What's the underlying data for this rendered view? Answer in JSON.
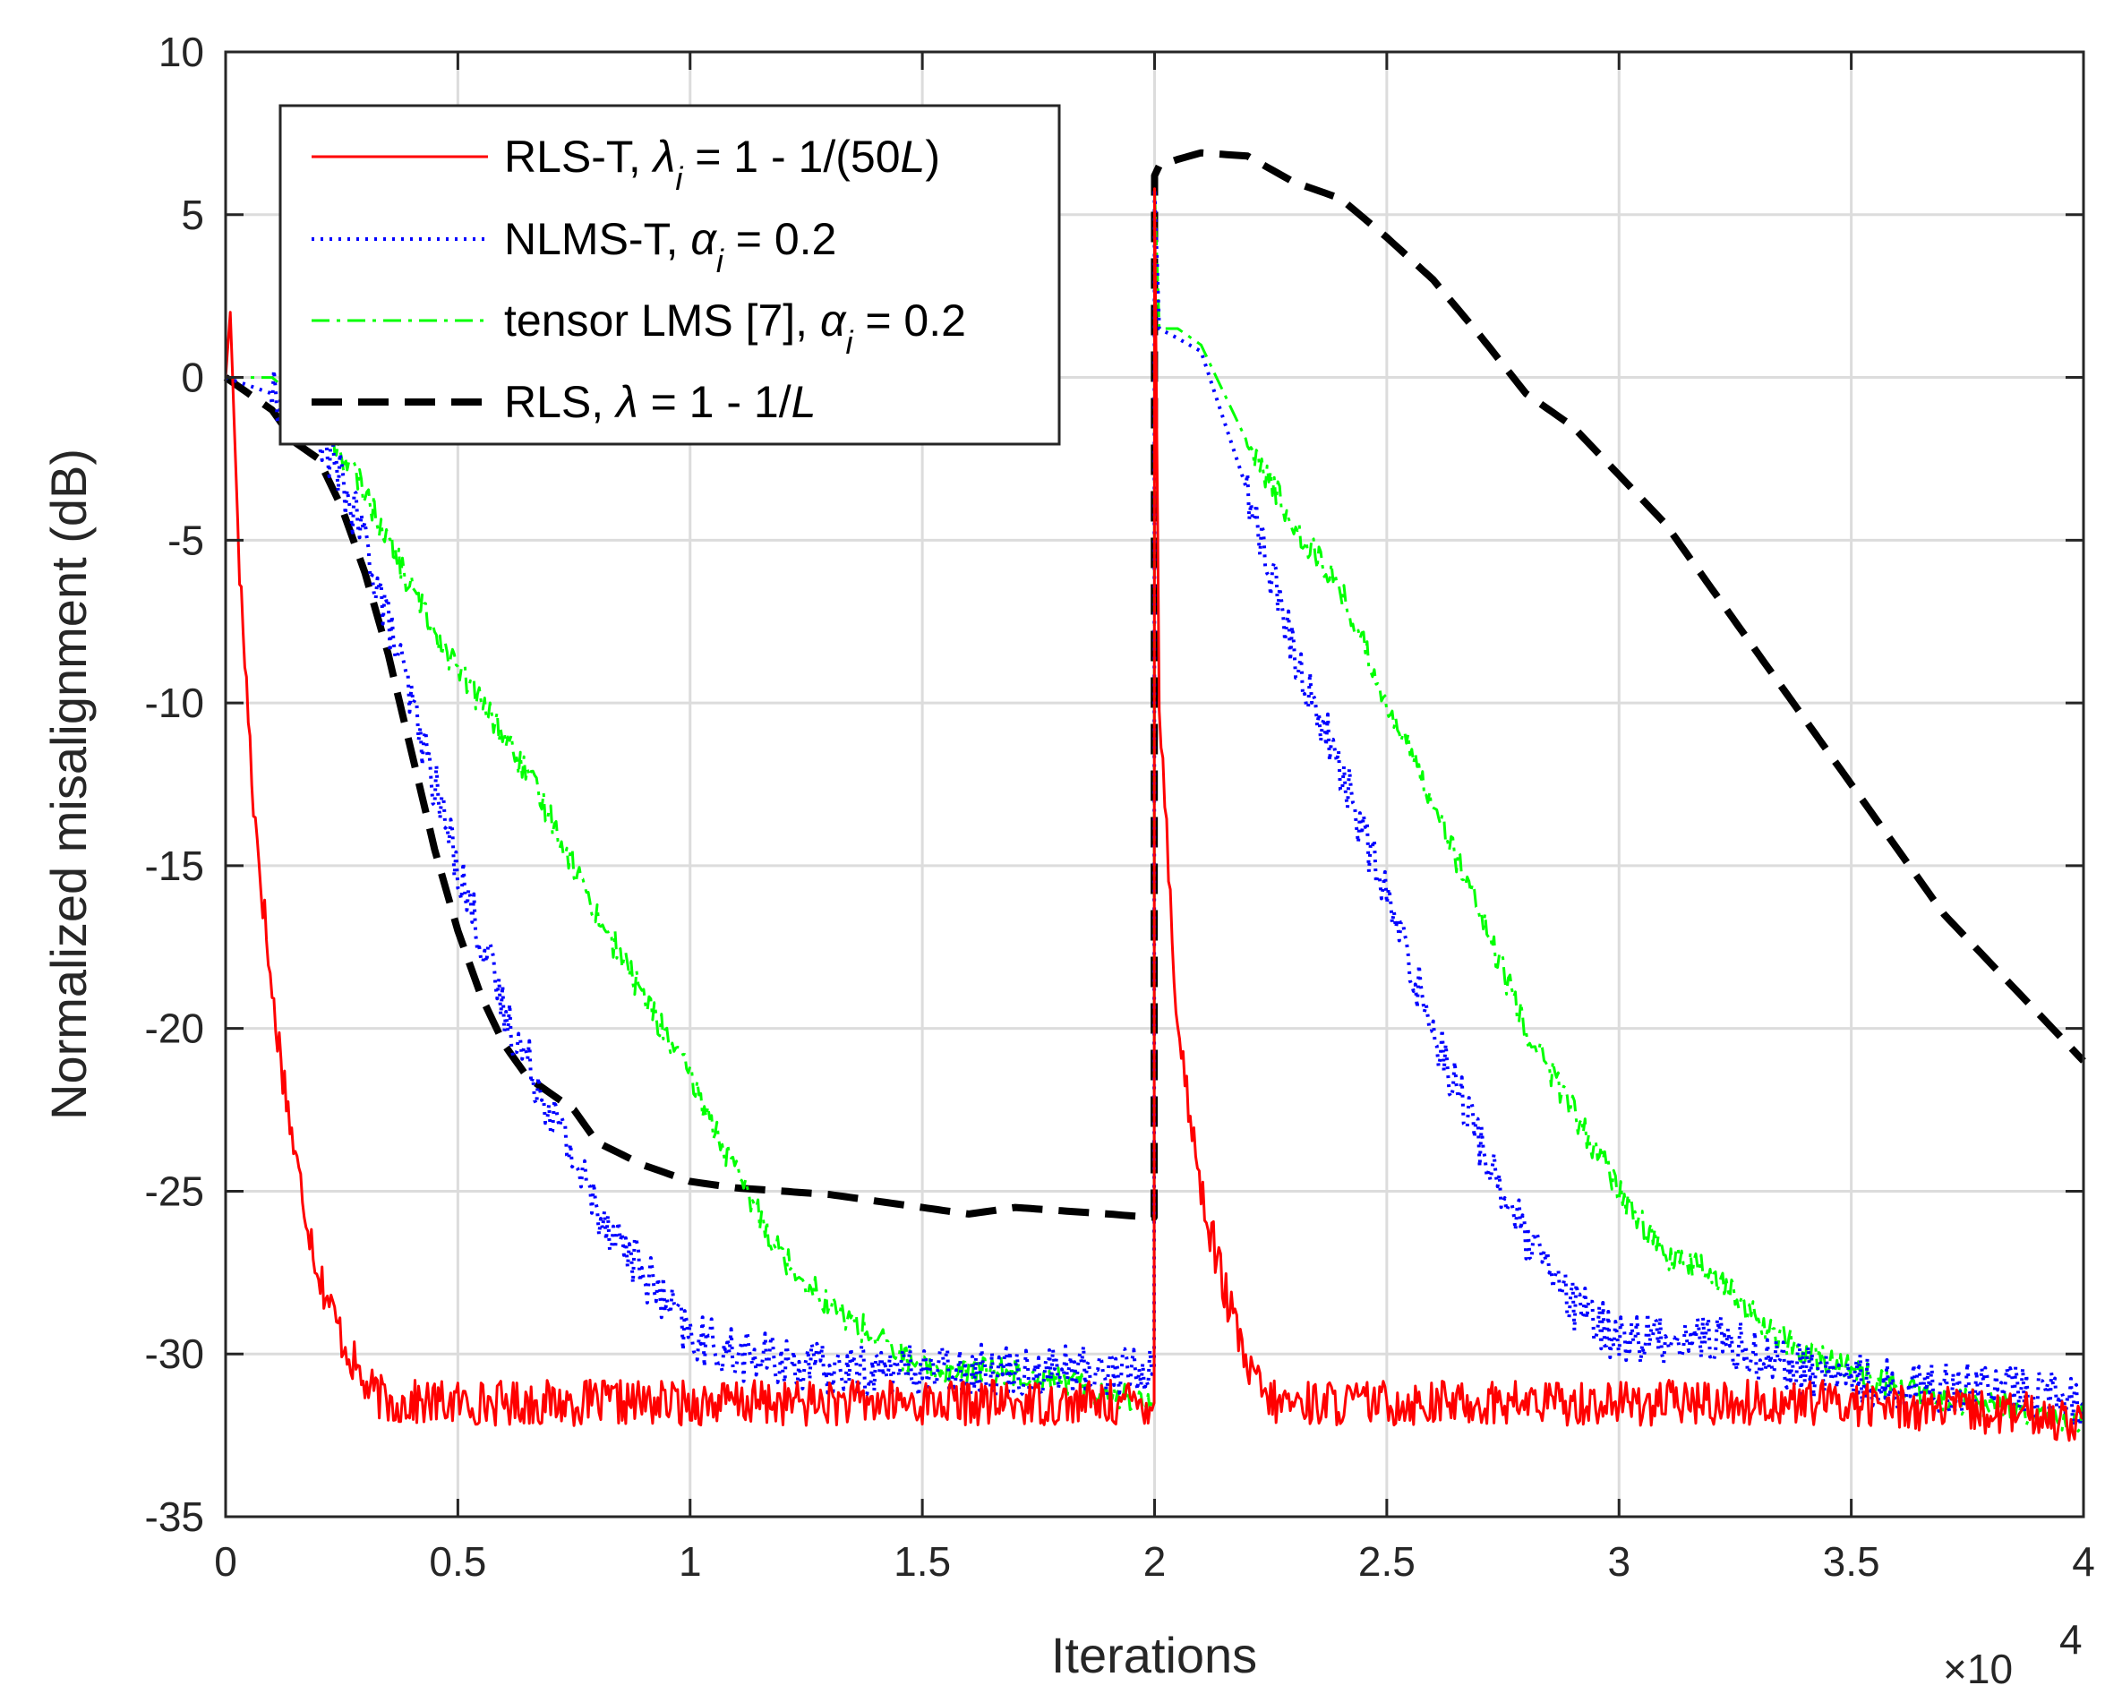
{
  "chart_data": {
    "type": "line",
    "title": "",
    "xlabel": "Iterations",
    "ylabel": "Normalized misalignment (dB)",
    "x_multiplier_label": "×10",
    "x_multiplier_exponent": "4",
    "xlim": [
      0,
      4
    ],
    "ylim": [
      -35,
      10
    ],
    "xticks": [
      0,
      0.5,
      1,
      1.5,
      2,
      2.5,
      3,
      3.5,
      4
    ],
    "xtick_labels": [
      "0",
      "0.5",
      "1",
      "1.5",
      "2",
      "2.5",
      "3",
      "3.5",
      "4"
    ],
    "yticks": [
      10,
      5,
      0,
      -5,
      -10,
      -15,
      -20,
      -25,
      -30,
      -35
    ],
    "ytick_labels": [
      "10",
      "5",
      "0",
      "-5",
      "-10",
      "-15",
      "-20",
      "-25",
      "-30",
      "-35"
    ],
    "grid": true,
    "legend_position": "top-left",
    "series": [
      {
        "name": "RLS-T",
        "legend_label_parts": [
          "RLS-T, ",
          "λ",
          "i",
          " = 1 - 1/(50",
          "L",
          ")"
        ],
        "color": "#ff0000",
        "style": "solid",
        "noise": 0.7,
        "x": [
          0,
          0.01,
          0.03,
          0.06,
          0.1,
          0.15,
          0.2,
          0.25,
          0.3,
          0.35,
          0.5,
          1.0,
          1.5,
          1.99,
          1.999,
          2.0,
          2.01,
          2.05,
          2.1,
          2.15,
          2.2,
          2.25,
          2.3,
          2.5,
          3.0,
          3.5,
          4.0
        ],
        "y": [
          0,
          2,
          -6,
          -13,
          -19,
          -24,
          -27.5,
          -29.5,
          -31,
          -31.5,
          -31.5,
          -31.5,
          -31.5,
          -31.5,
          -31.5,
          5.8,
          -10,
          -20,
          -25,
          -28,
          -30.5,
          -31.5,
          -31.5,
          -31.5,
          -31.5,
          -31.5,
          -32
        ]
      },
      {
        "name": "NLMS-T",
        "legend_label_parts": [
          "NLMS-T, ",
          "α",
          "i",
          " = 0.2"
        ],
        "color": "#0000ff",
        "style": "dotted",
        "noise": 0.8,
        "x": [
          0,
          0.1,
          0.2,
          0.3,
          0.4,
          0.5,
          0.6,
          0.7,
          0.8,
          0.9,
          1.0,
          1.1,
          1.3,
          1.5,
          1.7,
          1.99,
          1.999,
          2.0,
          2.01,
          2.05,
          2.1,
          2.2,
          2.3,
          2.4,
          2.5,
          2.6,
          2.7,
          2.8,
          2.9,
          3.0,
          3.1,
          3.2,
          3.4,
          3.6,
          3.8,
          4.0
        ],
        "y": [
          0,
          -0.5,
          -1.5,
          -5,
          -10,
          -15,
          -19.5,
          -22.5,
          -25.5,
          -27.5,
          -29.5,
          -30,
          -30.5,
          -30.5,
          -30.5,
          -30.5,
          -30.5,
          5.8,
          1.5,
          1.2,
          0.8,
          -3.5,
          -8.5,
          -12,
          -16,
          -20,
          -23.5,
          -26.5,
          -28.5,
          -29.5,
          -29.5,
          -29.5,
          -30.5,
          -31,
          -31,
          -31.5
        ]
      },
      {
        "name": "tensor LMS",
        "legend_label_parts": [
          "tensor LMS [7], ",
          "α",
          "i",
          " = 0.2"
        ],
        "color": "#00ff00",
        "style": "dashdot",
        "noise": 0.45,
        "x": [
          0,
          0.1,
          0.2,
          0.3,
          0.4,
          0.5,
          0.6,
          0.7,
          0.8,
          0.9,
          1.0,
          1.1,
          1.2,
          1.3,
          1.4,
          1.5,
          1.7,
          1.99,
          1.999,
          2.0,
          2.01,
          2.05,
          2.1,
          2.2,
          2.3,
          2.4,
          2.5,
          2.6,
          2.7,
          2.8,
          2.9,
          3.0,
          3.1,
          3.2,
          3.3,
          3.4,
          3.5,
          3.6,
          3.7,
          3.8,
          3.9,
          4.0
        ],
        "y": [
          0,
          0,
          -1.2,
          -3.5,
          -6.5,
          -9,
          -11,
          -13.5,
          -16.5,
          -19,
          -21.5,
          -24.5,
          -27,
          -28.5,
          -29.5,
          -30.5,
          -30.5,
          -31.5,
          -31.5,
          5.8,
          1.5,
          1.5,
          1,
          -2,
          -4.5,
          -6.5,
          -10,
          -13,
          -16.5,
          -20,
          -22.5,
          -25,
          -27,
          -27.5,
          -29,
          -30,
          -30.5,
          -31,
          -31.5,
          -31.5,
          -32,
          -32
        ]
      },
      {
        "name": "RLS",
        "legend_label_parts": [
          "RLS, ",
          "λ",
          "",
          " = 1 - 1/",
          "L",
          ""
        ],
        "color": "#000000",
        "style": "dashed",
        "noise": 0,
        "x": [
          0,
          0.1,
          0.15,
          0.2,
          0.25,
          0.3,
          0.35,
          0.4,
          0.45,
          0.5,
          0.55,
          0.6,
          0.65,
          0.7,
          0.75,
          0.8,
          0.9,
          1.0,
          1.1,
          1.2,
          1.3,
          1.4,
          1.5,
          1.6,
          1.7,
          1.8,
          1.9,
          1.99,
          1.999,
          2.0,
          2.01,
          2.05,
          2.1,
          2.2,
          2.3,
          2.4,
          2.5,
          2.6,
          2.7,
          2.8,
          2.9,
          3.0,
          3.1,
          3.2,
          3.3,
          3.4,
          3.5,
          3.6,
          3.7,
          3.8,
          3.9,
          4.0
        ],
        "y": [
          0,
          -1,
          -2,
          -2.5,
          -4,
          -6,
          -8.5,
          -11.5,
          -14.5,
          -17,
          -19,
          -20.5,
          -21.5,
          -22,
          -22.5,
          -23.5,
          -24.2,
          -24.7,
          -24.9,
          -25,
          -25.1,
          -25.3,
          -25.5,
          -25.7,
          -25.5,
          -25.6,
          -25.7,
          -25.8,
          -25.8,
          6.2,
          6.5,
          6.7,
          6.9,
          6.8,
          6,
          5.5,
          4.3,
          3,
          1.3,
          -0.5,
          -1.5,
          -3,
          -4.5,
          -6.5,
          -8.5,
          -10.5,
          -12.5,
          -14.5,
          -16.5,
          -18,
          -19.5,
          -21
        ]
      }
    ]
  }
}
